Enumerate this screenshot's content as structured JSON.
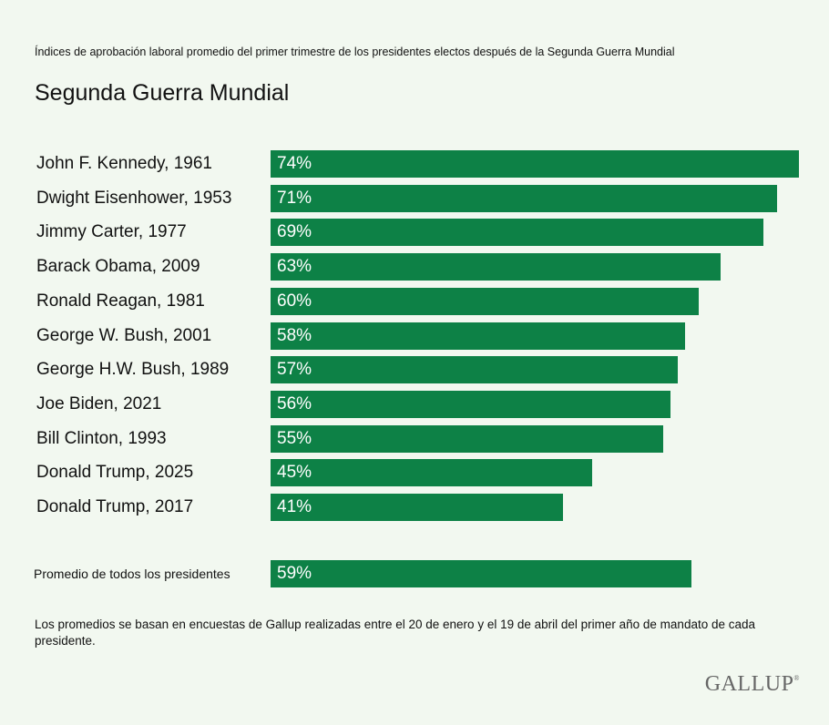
{
  "header": {
    "subtitle": "Índices de aprobación laboral promedio del primer trimestre de los presidentes electos después de la Segunda Guerra Mundial",
    "title": "Segunda Guerra Mundial"
  },
  "chart_data": {
    "type": "bar",
    "orientation": "horizontal",
    "value_suffix": "%",
    "categories": [
      "John F. Kennedy, 1961",
      "Dwight Eisenhower, 1953",
      "Jimmy Carter, 1977",
      "Barack Obama, 2009",
      "Ronald Reagan, 1981",
      "George W. Bush, 2001",
      "George H.W. Bush, 1989",
      "Joe Biden, 2021",
      "Bill Clinton, 1993",
      "Donald Trump, 2025",
      "Donald Trump, 2017"
    ],
    "values": [
      74,
      71,
      69,
      63,
      60,
      58,
      57,
      56,
      55,
      45,
      41
    ],
    "average": {
      "label": "Promedio de todos los presidentes",
      "value": 59
    },
    "xlim": [
      0,
      74
    ],
    "bar_color": "#0d8146"
  },
  "footer": {
    "note": "Los promedios se basan en encuestas de Gallup realizadas entre el 20 de enero y el 19 de abril del primer año de mandato de cada presidente.",
    "logo": "GALLUP",
    "logo_mark": "®"
  }
}
